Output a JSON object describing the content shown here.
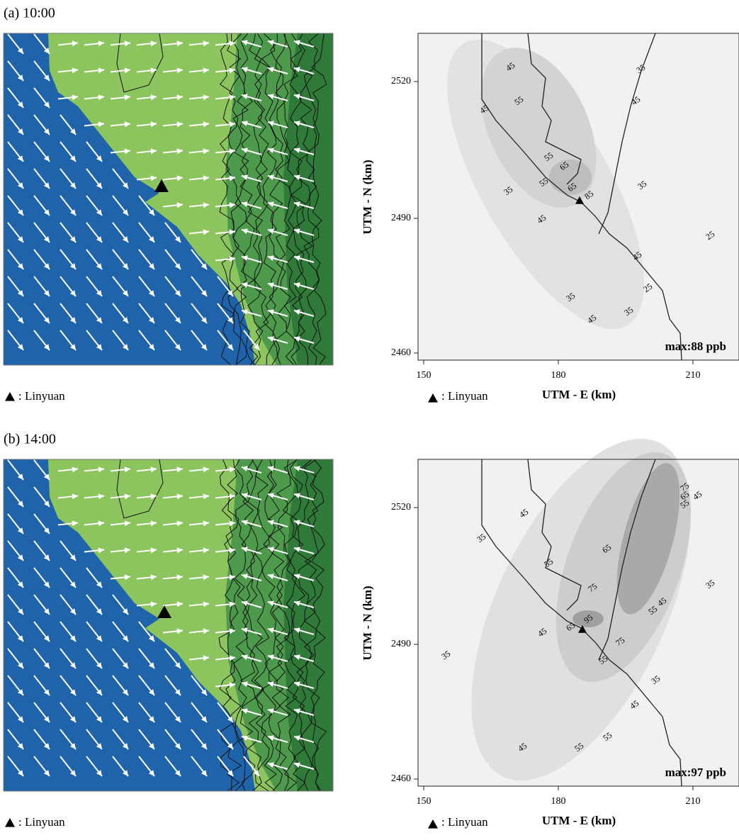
{
  "panels": [
    {
      "title": "(a) 10:00",
      "wind_map": {
        "legend": ": Linyuan"
      },
      "ozone_map": {
        "y_axis_label": "UTM - N (km)",
        "x_axis_label": "UTM - E (km)",
        "yticks": [
          2460,
          2490,
          2520
        ],
        "xticks": [
          150,
          180,
          210
        ],
        "max_label": "max:88 ppb",
        "legend": ": Linyuan",
        "contour_labels": [
          45,
          35,
          55,
          45,
          45,
          55,
          65,
          35,
          55,
          65,
          85,
          35,
          45,
          25,
          45,
          25,
          35,
          45,
          35
        ]
      }
    },
    {
      "title": "(b) 14:00",
      "wind_map": {
        "legend": ": Linyuan"
      },
      "ozone_map": {
        "y_axis_label": "UTM - N (km)",
        "x_axis_label": "UTM - E (km)",
        "yticks": [
          2460,
          2490,
          2520
        ],
        "xticks": [
          150,
          180,
          210
        ],
        "max_label": "max:97 ppb",
        "legend": ": Linyuan",
        "contour_labels": [
          45,
          75,
          65,
          55,
          45,
          35,
          65,
          55,
          35,
          75,
          95,
          55,
          45,
          65,
          45,
          75,
          55,
          35,
          35,
          45,
          55,
          55,
          45
        ]
      }
    }
  ]
}
